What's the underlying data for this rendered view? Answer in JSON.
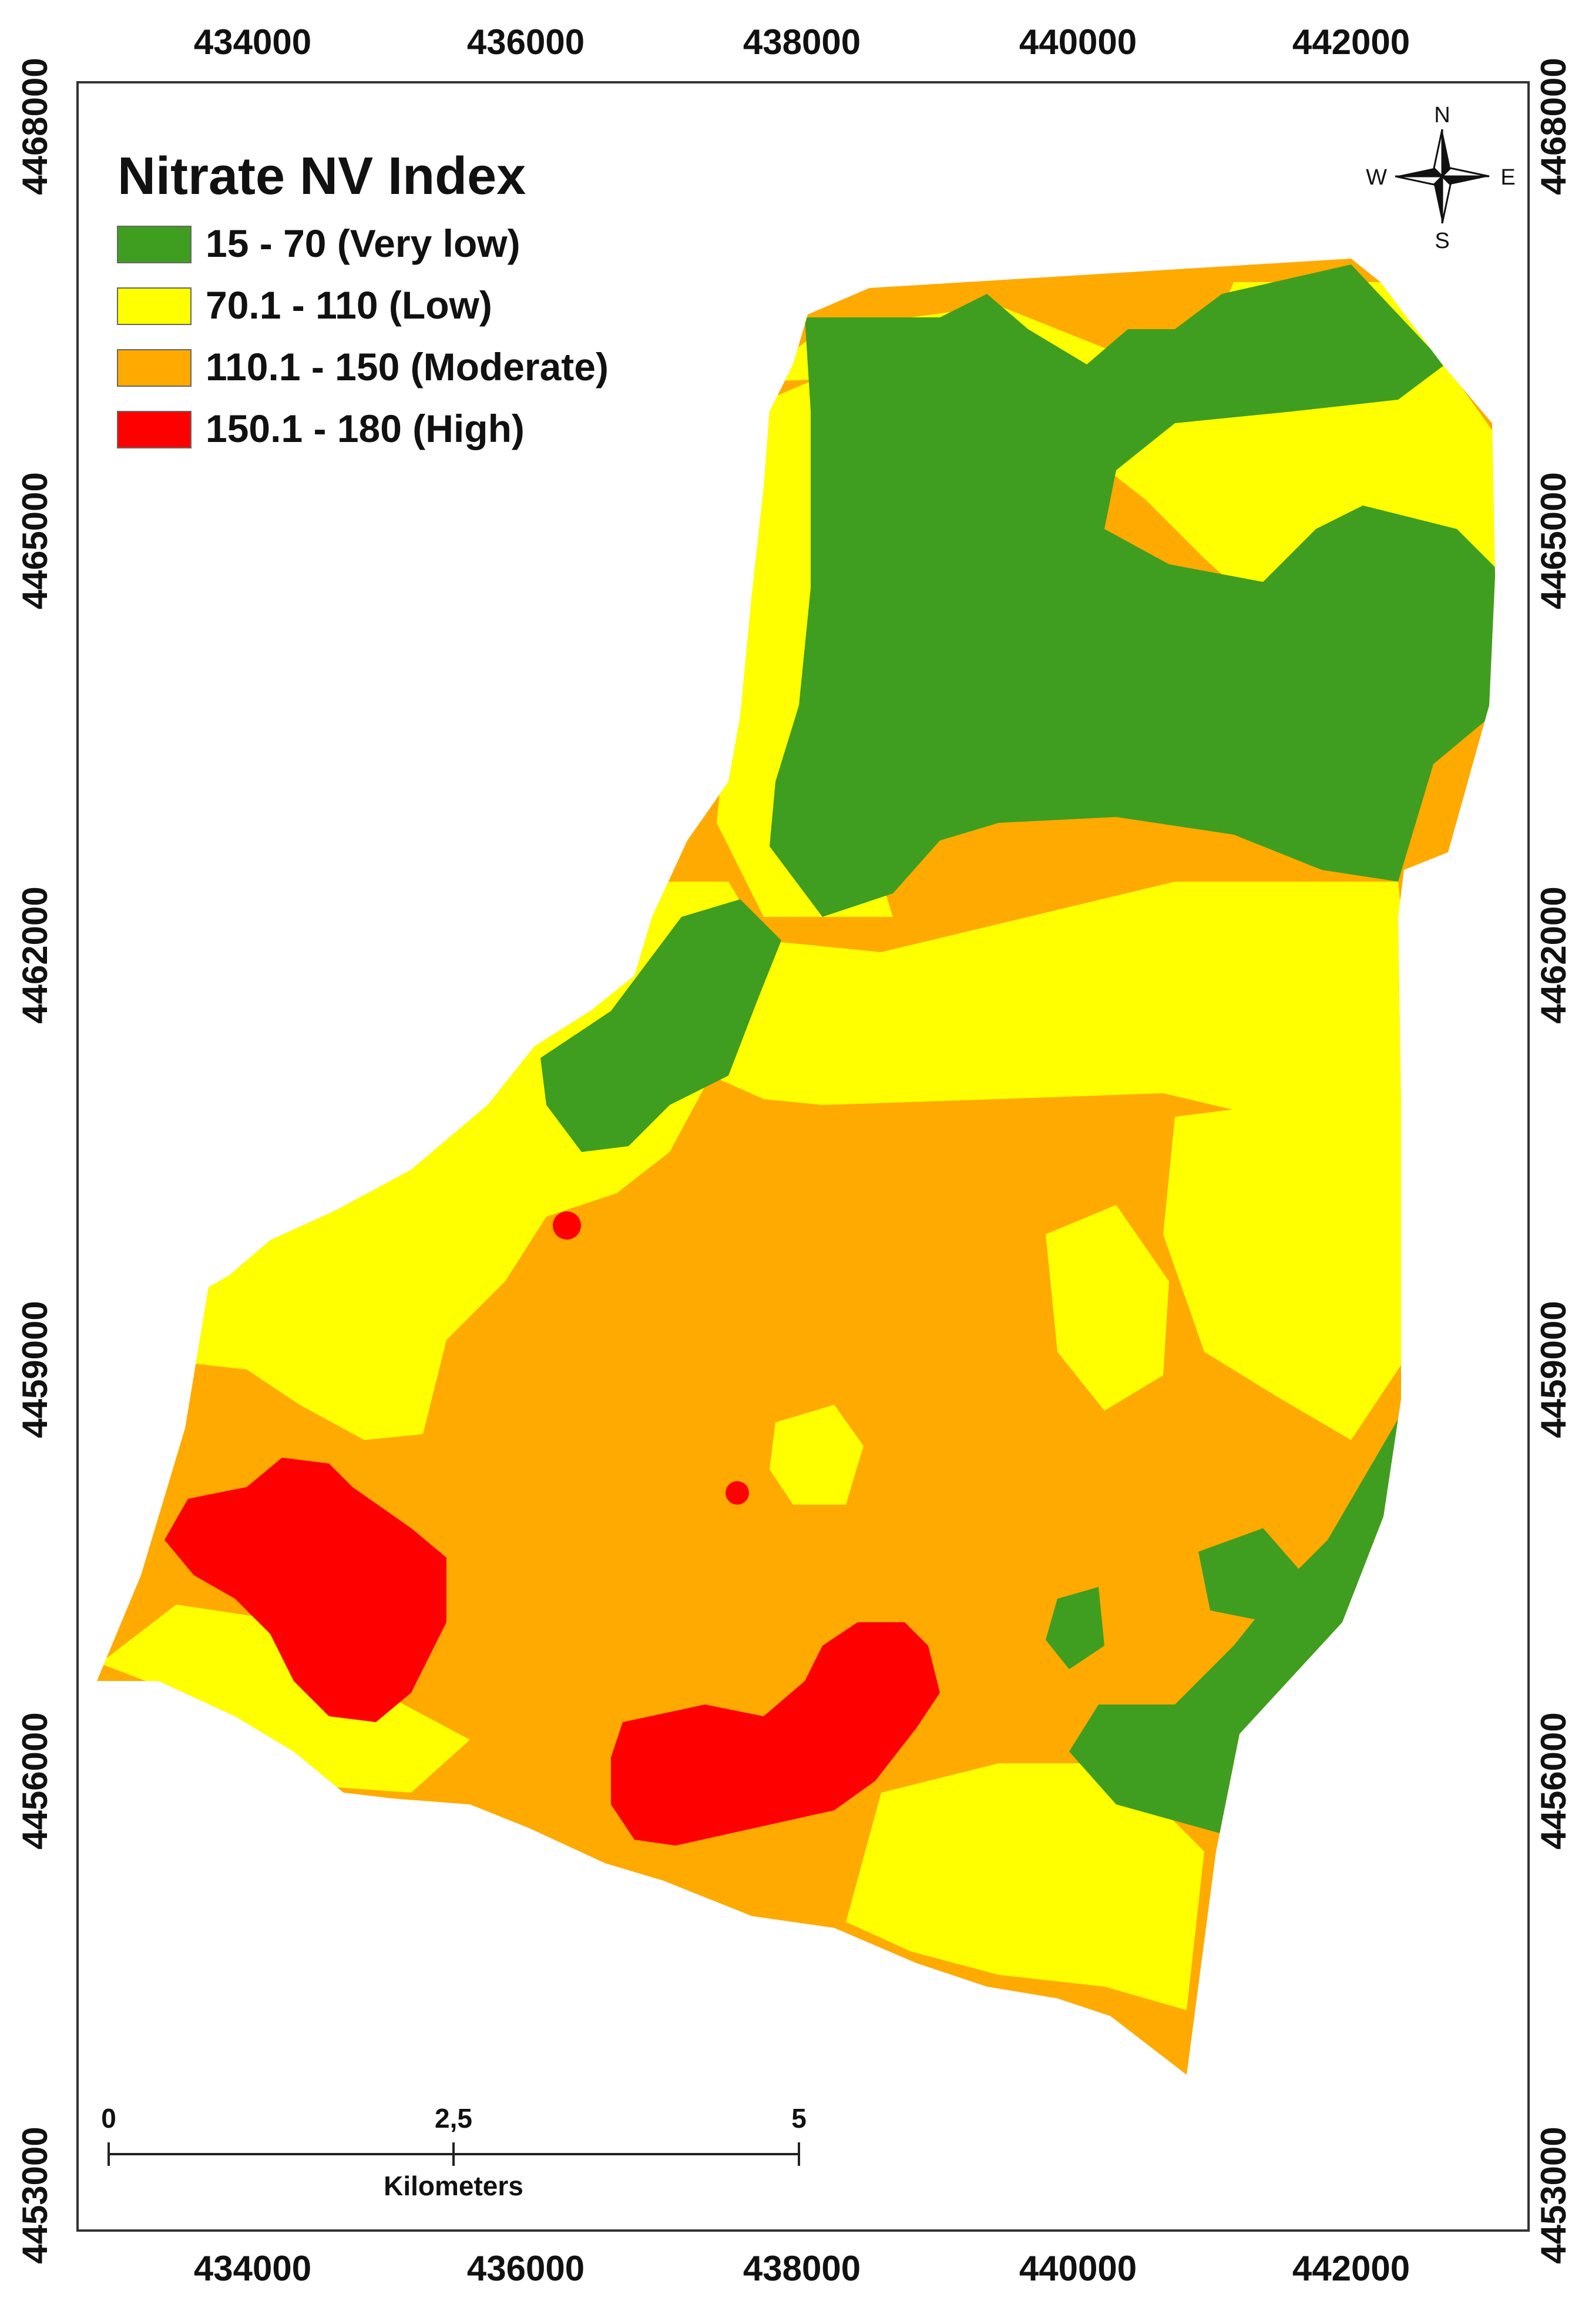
{
  "map": {
    "legend": {
      "title": "Nitrate NV Index",
      "classes": [
        {
          "label": "15 - 70 (Very low)",
          "color": "#3f9e1f"
        },
        {
          "label": "70.1 - 110 (Low)",
          "color": "#ffff00"
        },
        {
          "label": "110.1 - 150 (Moderate)",
          "color": "#ffaa00"
        },
        {
          "label": "150.1 - 180 (High)",
          "color": "#ff0000"
        }
      ]
    },
    "x_ticks": [
      "434000",
      "436000",
      "438000",
      "440000",
      "442000"
    ],
    "y_ticks": [
      "4468000",
      "4465000",
      "4462000",
      "4459000",
      "4456000",
      "4453000"
    ],
    "compass": {
      "n": "N",
      "s": "S",
      "e": "E",
      "w": "W",
      "icon": "north-arrow-icon"
    },
    "scale_bar": {
      "labels": [
        "0",
        "2,5",
        "5"
      ],
      "unit": "Kilometers"
    }
  }
}
